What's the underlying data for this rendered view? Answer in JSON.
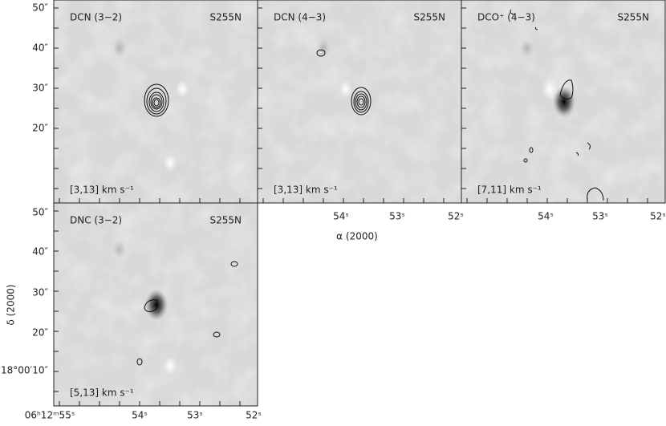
{
  "panels": [
    {
      "line": "DCN (3−2)",
      "source": "S255N",
      "velocity": "[3,13] km s⁻¹"
    },
    {
      "line": "DCN (4−3)",
      "source": "S255N",
      "velocity": "[3,13] km s⁻¹"
    },
    {
      "line": "DCO⁺ (4−3)",
      "source": "S255N",
      "velocity": "[7,11] km s⁻¹"
    },
    {
      "line": "DNC (3−2)",
      "source": "S255N",
      "velocity": "[5,13] km s⁻¹"
    }
  ],
  "y_axis": {
    "label": "δ (2000)",
    "top_ticks": [
      "50″",
      "40″",
      "30″",
      "20″"
    ],
    "bottom_ticks": [
      "50″",
      "40″",
      "30″",
      "20″",
      "18°00′10″"
    ]
  },
  "x_axis": {
    "label": "α (2000)",
    "top_ticks": [
      "54ˢ",
      "53ˢ",
      "52ˢ"
    ],
    "bottom_ticks": [
      "06ʰ12ᵐ55ˢ",
      "54ˢ",
      "53ˢ",
      "52ˢ"
    ]
  }
}
